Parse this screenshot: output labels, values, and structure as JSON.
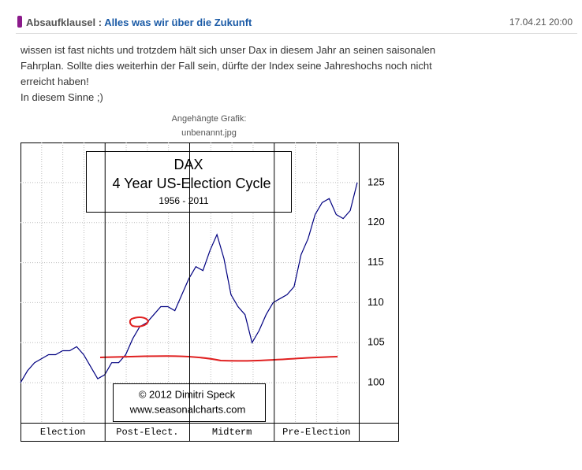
{
  "post": {
    "author": "Absaufklausel",
    "separator": ":",
    "title": "Alles was wir über die Zukunft",
    "date": "17.04.21 20:00",
    "body": [
      "wissen ist fast nichts und trotzdem hält sich unser Dax in diesem Jahr an seinen saisonalen",
      "Fahrplan.  Sollte dies weiterhin der Fall sein, dürfte der Index seine Jahreshochs noch nicht",
      "erreicht haben!",
      "In diesem Sinne ;)"
    ],
    "attachment_label": "Angehängte Grafik:",
    "attachment_name": "unbenannt.jpg"
  },
  "chart_data": {
    "type": "line",
    "title": "DAX",
    "subtitle": "4 Year US-Election Cycle",
    "period": "1956 - 2011",
    "credit": [
      "© 2012  Dimitri Speck",
      "www.seasonalcharts.com"
    ],
    "phases": [
      "Election",
      "Post-Elect.",
      "Midterm",
      "Pre-Election"
    ],
    "series": [
      {
        "name": "DAX",
        "color": "#000080",
        "values": [
          100,
          101.5,
          102.5,
          103,
          103.5,
          103.5,
          104,
          104,
          104.5,
          103.5,
          102,
          100.5,
          101,
          102.5,
          102.5,
          103.5,
          105.5,
          107,
          107.5,
          108.5,
          109.5,
          109.5,
          109,
          111,
          113,
          114.5,
          114,
          116.5,
          118.5,
          115.5,
          111,
          109.5,
          108.5,
          105,
          106.5,
          108.5,
          110,
          110.5,
          111,
          112,
          116,
          118,
          121,
          122.5,
          123,
          121,
          120.5,
          121.5,
          125
        ]
      }
    ],
    "ylim": [
      95,
      130
    ],
    "yticks": [
      100,
      105,
      110,
      115,
      120,
      125
    ],
    "grid": true
  }
}
